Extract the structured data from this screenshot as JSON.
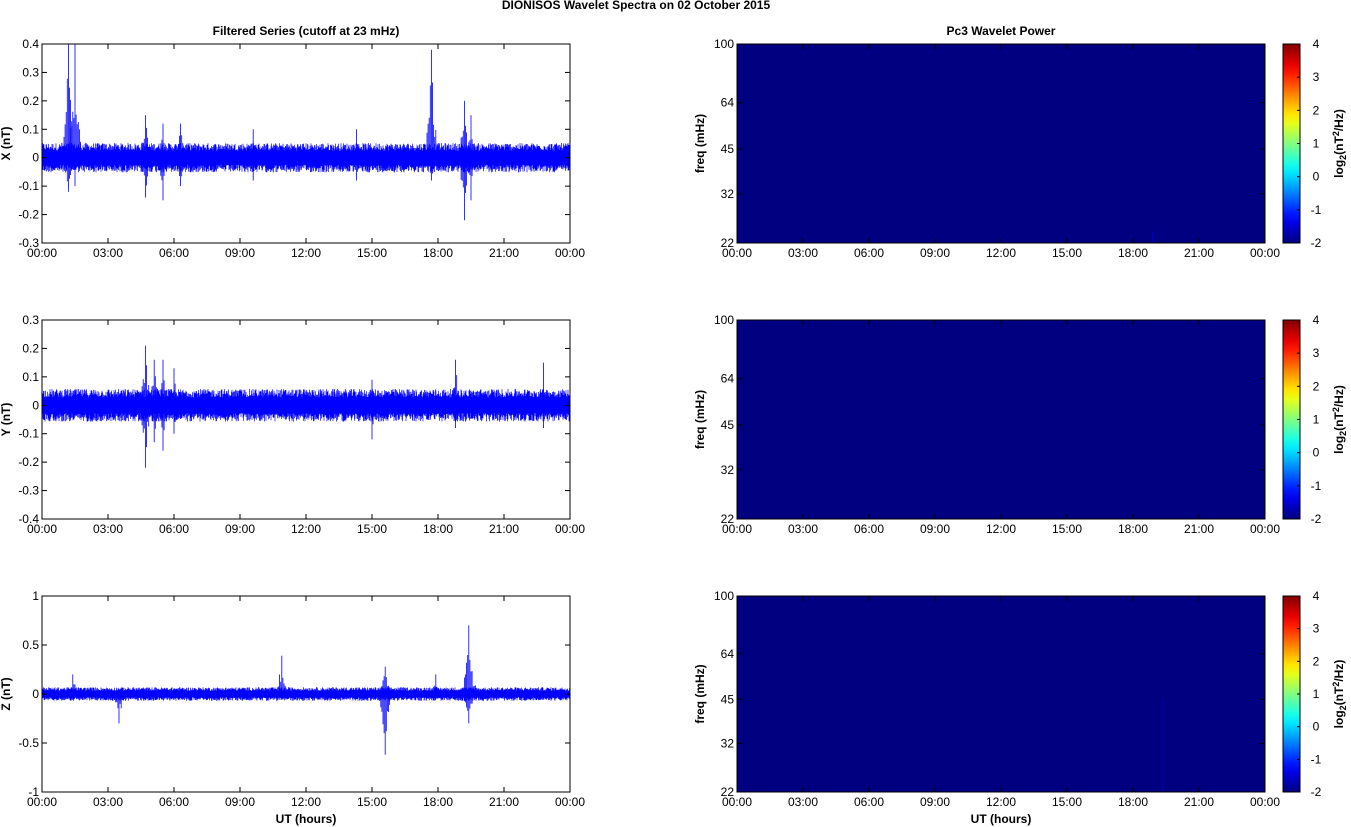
{
  "figure": {
    "title": "DIONISOS Wavelet Spectra on 02 October   2015",
    "left_column_title": "Filtered Series (cutoff at 23 mHz)",
    "right_column_title": "Pc3 Wavelet Power",
    "x_label": "UT (hours)"
  },
  "chart_data": [
    {
      "type": "line",
      "title": "Filtered Series (cutoff at 23 mHz)",
      "xlabel": "",
      "ylabel": "X (nT)",
      "x_ticks": [
        "00:00",
        "03:00",
        "06:00",
        "09:00",
        "12:00",
        "15:00",
        "18:00",
        "21:00",
        "00:00"
      ],
      "xlim_hours": [
        0,
        24
      ],
      "ylim": [
        -0.3,
        0.4
      ],
      "y_ticks": [
        -0.3,
        -0.2,
        -0.1,
        0,
        0.1,
        0.2,
        0.3,
        0.4
      ],
      "y_tick_labels": [
        "-0.3",
        "-0.2",
        "-0.1",
        "0",
        "0.1",
        "0.2",
        "0.3",
        "0.4"
      ],
      "series_color": "#0000ff",
      "noise_band": [
        -0.045,
        0.045
      ],
      "events": [
        {
          "t": 1.2,
          "hi": 0.4,
          "lo": -0.12
        },
        {
          "t": 1.5,
          "hi": 0.4,
          "lo": -0.1
        },
        {
          "t": 4.7,
          "hi": 0.15,
          "lo": -0.14
        },
        {
          "t": 5.5,
          "hi": 0.12,
          "lo": -0.15
        },
        {
          "t": 6.3,
          "hi": 0.12,
          "lo": -0.1
        },
        {
          "t": 9.6,
          "hi": 0.1,
          "lo": -0.08
        },
        {
          "t": 14.3,
          "hi": 0.1,
          "lo": -0.08
        },
        {
          "t": 17.7,
          "hi": 0.38,
          "lo": -0.08
        },
        {
          "t": 19.2,
          "hi": 0.2,
          "lo": -0.22
        },
        {
          "t": 19.5,
          "hi": 0.15,
          "lo": -0.15
        }
      ]
    },
    {
      "type": "line",
      "xlabel": "",
      "ylabel": "Y (nT)",
      "x_ticks": [
        "00:00",
        "03:00",
        "06:00",
        "09:00",
        "12:00",
        "15:00",
        "18:00",
        "21:00",
        "00:00"
      ],
      "xlim_hours": [
        0,
        24
      ],
      "ylim": [
        -0.4,
        0.3
      ],
      "y_ticks": [
        -0.4,
        -0.3,
        -0.2,
        -0.1,
        0,
        0.1,
        0.2,
        0.3
      ],
      "y_tick_labels": [
        "-0.4",
        "-0.3",
        "-0.2",
        "-0.1",
        "0",
        "0.1",
        "0.2",
        "0.3"
      ],
      "series_color": "#0000ff",
      "noise_band": [
        -0.05,
        0.05
      ],
      "events": [
        {
          "t": 4.7,
          "hi": 0.21,
          "lo": -0.22
        },
        {
          "t": 5.1,
          "hi": 0.16,
          "lo": -0.13
        },
        {
          "t": 5.5,
          "hi": 0.16,
          "lo": -0.16
        },
        {
          "t": 6.0,
          "hi": 0.13,
          "lo": -0.1
        },
        {
          "t": 15.0,
          "hi": 0.09,
          "lo": -0.12
        },
        {
          "t": 18.8,
          "hi": 0.16,
          "lo": -0.08
        },
        {
          "t": 22.8,
          "hi": 0.15,
          "lo": -0.08
        }
      ]
    },
    {
      "type": "line",
      "xlabel": "UT (hours)",
      "ylabel": "Z (nT)",
      "x_ticks": [
        "00:00",
        "03:00",
        "06:00",
        "09:00",
        "12:00",
        "15:00",
        "18:00",
        "21:00",
        "00:00"
      ],
      "xlim_hours": [
        0,
        24
      ],
      "ylim": [
        -1,
        1
      ],
      "y_ticks": [
        -1,
        -0.5,
        0,
        0.5,
        1
      ],
      "y_tick_labels": [
        "-1",
        "-0.5",
        "0",
        "0.5",
        "1"
      ],
      "series_color": "#0000ff",
      "noise_band": [
        -0.06,
        0.06
      ],
      "events": [
        {
          "t": 1.4,
          "hi": 0.2,
          "lo": -0.05
        },
        {
          "t": 3.5,
          "hi": 0.05,
          "lo": -0.3
        },
        {
          "t": 10.9,
          "hi": 0.39,
          "lo": -0.05
        },
        {
          "t": 15.6,
          "hi": 0.28,
          "lo": -0.62
        },
        {
          "t": 17.9,
          "hi": 0.2,
          "lo": -0.05
        },
        {
          "t": 19.4,
          "hi": 0.7,
          "lo": -0.3
        }
      ]
    },
    {
      "type": "heatmap",
      "title": "Pc3 Wavelet Power",
      "xlabel": "",
      "ylabel": "freq (mHz)",
      "x_ticks": [
        "00:00",
        "03:00",
        "06:00",
        "09:00",
        "12:00",
        "15:00",
        "18:00",
        "21:00",
        "00:00"
      ],
      "xlim_hours": [
        0,
        24
      ],
      "y_scale": "log",
      "ylim": [
        22,
        100
      ],
      "y_ticks": [
        22,
        32,
        45,
        64,
        100
      ],
      "colorbar": {
        "label": "log2(nT^2/Hz)",
        "range": [
          -2,
          4
        ],
        "ticks": [
          -2,
          -1,
          0,
          1,
          2,
          3,
          4
        ]
      },
      "background_value": -2,
      "features": [
        {
          "t": 18.9,
          "f_from": 22,
          "f_to": 24,
          "value": -1.7
        }
      ]
    },
    {
      "type": "heatmap",
      "xlabel": "",
      "ylabel": "freq (mHz)",
      "x_ticks": [
        "00:00",
        "03:00",
        "06:00",
        "09:00",
        "12:00",
        "15:00",
        "18:00",
        "21:00",
        "00:00"
      ],
      "xlim_hours": [
        0,
        24
      ],
      "y_scale": "log",
      "ylim": [
        22,
        100
      ],
      "y_ticks": [
        22,
        32,
        45,
        64,
        100
      ],
      "colorbar": {
        "label": "log2(nT^2/Hz)",
        "range": [
          -2,
          4
        ],
        "ticks": [
          -2,
          -1,
          0,
          1,
          2,
          3,
          4
        ]
      },
      "background_value": -2,
      "features": []
    },
    {
      "type": "heatmap",
      "xlabel": "UT (hours)",
      "ylabel": "freq (mHz)",
      "x_ticks": [
        "00:00",
        "03:00",
        "06:00",
        "09:00",
        "12:00",
        "15:00",
        "18:00",
        "21:00",
        "00:00"
      ],
      "xlim_hours": [
        0,
        24
      ],
      "y_scale": "log",
      "ylim": [
        22,
        100
      ],
      "y_ticks": [
        22,
        32,
        45,
        64,
        100
      ],
      "colorbar": {
        "label": "log2(nT^2/Hz)",
        "range": [
          -2,
          4
        ],
        "ticks": [
          -2,
          -1,
          0,
          1,
          2,
          3,
          4
        ]
      },
      "background_value": -2,
      "features": [
        {
          "t": 19.35,
          "f_from": 22,
          "f_to": 45,
          "value": -1.8
        }
      ]
    }
  ]
}
